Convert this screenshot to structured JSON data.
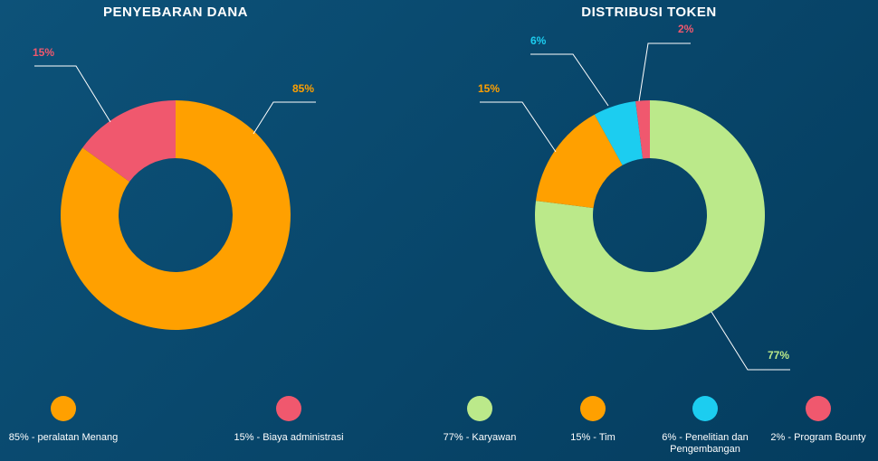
{
  "theme": {
    "background_start": "#0d5279",
    "background_end": "#043c5e",
    "text": "#ffffff",
    "leader_line": "#ffffff"
  },
  "chart_data": [
    {
      "type": "pie",
      "donut": true,
      "title": "PENYEBARAN DANA",
      "values": [
        85,
        15
      ],
      "data_labels": [
        "85%",
        "15%"
      ],
      "legend": [
        "85% - peralatan Menang",
        "15% - Biaya administrasi"
      ],
      "colors": [
        "#ffa000",
        "#f0586e"
      ],
      "legend_position": "bottom"
    },
    {
      "type": "pie",
      "donut": true,
      "title": "DISTRIBUSI TOKEN",
      "values": [
        77,
        15,
        6,
        2
      ],
      "data_labels": [
        "77%",
        "15%",
        "6%",
        "2%"
      ],
      "legend": [
        "77% - Karyawan",
        "15% - Tim",
        "6% - Penelitian dan Pengembangan",
        "2% - Program Bounty"
      ],
      "colors": [
        "#bbe98a",
        "#ffa000",
        "#1ccdf0",
        "#f0586e"
      ],
      "legend_position": "bottom"
    }
  ]
}
